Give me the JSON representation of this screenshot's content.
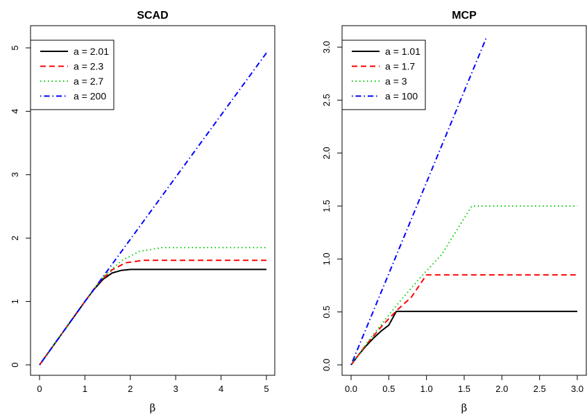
{
  "chart_data": [
    {
      "type": "line",
      "title": "SCAD",
      "xlabel": "β",
      "ylabel": "",
      "xlim": [
        0,
        5
      ],
      "ylim": [
        0,
        5
      ],
      "xticks": [
        "0",
        "1",
        "2",
        "3",
        "4",
        "5"
      ],
      "yticks": [
        "0",
        "1",
        "2",
        "3",
        "4",
        "5"
      ],
      "legend_position": "top-left",
      "series": [
        {
          "name": "a = 2.01",
          "color": "#000000",
          "dash": "solid",
          "x": [
            0,
            1,
            1.2,
            1.4,
            1.6,
            1.8,
            2.01,
            5
          ],
          "y": [
            0,
            1,
            1.19,
            1.35,
            1.45,
            1.49,
            1.505,
            1.505
          ]
        },
        {
          "name": "a = 2.3",
          "color": "#ff0000",
          "dash": "dashed",
          "x": [
            0,
            1,
            1.3,
            1.6,
            1.9,
            2.3,
            5
          ],
          "y": [
            0,
            1,
            1.29,
            1.5,
            1.61,
            1.65,
            1.65
          ]
        },
        {
          "name": "a = 2.7",
          "color": "#00cd00",
          "dash": "dotted",
          "x": [
            0,
            1,
            1.4,
            1.8,
            2.2,
            2.7,
            5
          ],
          "y": [
            0,
            1,
            1.39,
            1.64,
            1.79,
            1.85,
            1.85
          ]
        },
        {
          "name": "a = 200",
          "color": "#0000ff",
          "dash": "dotdash",
          "x": [
            0,
            1,
            5
          ],
          "y": [
            0,
            1,
            4.92
          ]
        }
      ]
    },
    {
      "type": "line",
      "title": "MCP",
      "xlabel": "β",
      "ylabel": "",
      "xlim": [
        0,
        3
      ],
      "ylim": [
        0,
        3
      ],
      "xticks": [
        "0.0",
        "0.5",
        "1.0",
        "1.5",
        "2.0",
        "2.5",
        "3.0"
      ],
      "yticks": [
        "0.0",
        "0.5",
        "1.0",
        "1.5",
        "2.0",
        "2.5",
        "3.0"
      ],
      "legend_position": "top-left",
      "series": [
        {
          "name": "a = 1.01",
          "color": "#000000",
          "dash": "solid",
          "x": [
            0,
            0.1,
            0.2,
            0.3,
            0.4,
            0.5,
            0.6,
            3.0
          ],
          "y": [
            0,
            0.095,
            0.18,
            0.255,
            0.32,
            0.375,
            0.505,
            0.505
          ]
        },
        {
          "name": "a = 1.7",
          "color": "#ff0000",
          "dash": "dashed",
          "x": [
            0,
            0.2,
            0.4,
            0.6,
            0.8,
            1.0,
            3.0
          ],
          "y": [
            0,
            0.19,
            0.36,
            0.51,
            0.64,
            0.85,
            0.85
          ]
        },
        {
          "name": "a = 3",
          "color": "#00cd00",
          "dash": "dotted",
          "x": [
            0,
            0.3,
            0.6,
            0.9,
            1.2,
            1.6,
            3.0
          ],
          "y": [
            0,
            0.29,
            0.56,
            0.81,
            1.04,
            1.5,
            1.5
          ]
        },
        {
          "name": "a = 100",
          "color": "#0000ff",
          "dash": "dotdash",
          "x": [
            0,
            1.8
          ],
          "y": [
            0,
            3.1
          ]
        }
      ]
    }
  ]
}
